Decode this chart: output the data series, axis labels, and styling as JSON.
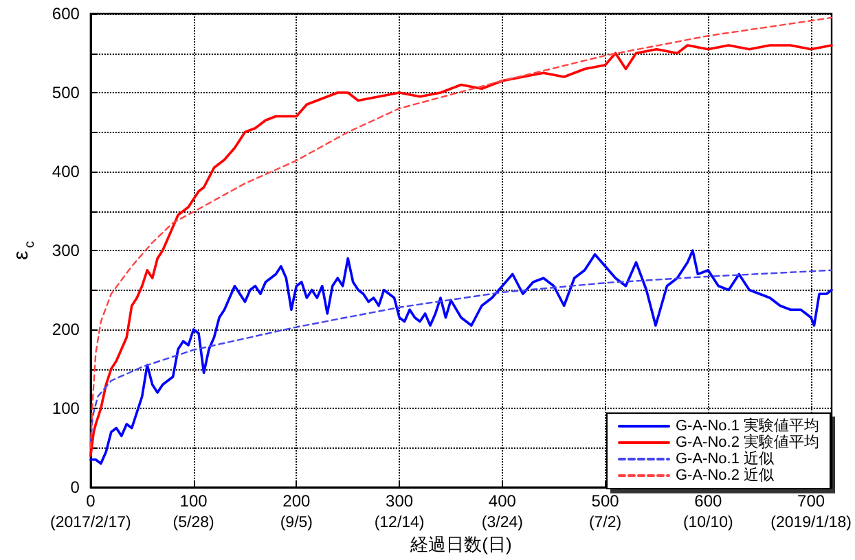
{
  "chart_data": {
    "type": "line",
    "xlabel": "経過日数(日)",
    "ylabel": "ε$_{c}$",
    "xlim": [
      0,
      720
    ],
    "ylim": [
      0,
      600
    ],
    "xticks": [
      0,
      100,
      200,
      300,
      400,
      500,
      600,
      700
    ],
    "x2lim": [
      "2017-02-17",
      "2019-02-07"
    ],
    "x2ticks": [
      {
        "value": "2017-02-17",
        "label": "(2017/2/17)"
      },
      {
        "value": "2017-05-28",
        "label": "(5/28)"
      },
      {
        "value": "2017-09-05",
        "label": "(9/5)"
      },
      {
        "value": "2017-12-14",
        "label": "(12/14)"
      },
      {
        "value": "2018-03-24",
        "label": "(3/24)"
      },
      {
        "value": "2018-07-02",
        "label": "(7/2)"
      },
      {
        "value": "2018-10-10",
        "label": "(10/10)"
      },
      {
        "value": "2019-01-18",
        "label": "(2019/1/18)"
      }
    ],
    "yticks": [
      0,
      {
        "value": 50,
        "label": null
      },
      100,
      {
        "value": 150,
        "label": null
      },
      200,
      {
        "value": 250,
        "label": null
      },
      300,
      {
        "value": 350,
        "label": null
      },
      400,
      {
        "value": 450,
        "label": null
      },
      500,
      {
        "value": 550,
        "label": null
      },
      600
    ],
    "grid": true,
    "legend": "bottom right",
    "marker": "none",
    "series": [
      {
        "name": "G-A-No.1 実験値平均",
        "color": "#0000ff",
        "line_style": "solid",
        "x": [
          0,
          5,
          10,
          15,
          20,
          25,
          30,
          35,
          40,
          45,
          50,
          55,
          60,
          65,
          70,
          75,
          80,
          85,
          90,
          95,
          100,
          105,
          110,
          115,
          120,
          125,
          130,
          135,
          140,
          145,
          150,
          155,
          160,
          165,
          170,
          175,
          180,
          185,
          190,
          195,
          200,
          205,
          210,
          215,
          220,
          225,
          230,
          235,
          240,
          245,
          250,
          255,
          260,
          265,
          270,
          275,
          280,
          285,
          290,
          295,
          300,
          305,
          310,
          315,
          320,
          325,
          330,
          335,
          340,
          345,
          350,
          360,
          370,
          380,
          390,
          400,
          410,
          420,
          430,
          440,
          450,
          460,
          470,
          480,
          490,
          500,
          510,
          520,
          530,
          540,
          549,
          560,
          570,
          580,
          585,
          590,
          600,
          610,
          620,
          630,
          640,
          650,
          660,
          670,
          680,
          690,
          700,
          703,
          708,
          715,
          720
        ],
        "values": [
          35,
          35,
          30,
          45,
          70,
          75,
          65,
          80,
          75,
          95,
          115,
          155,
          130,
          120,
          130,
          135,
          140,
          175,
          185,
          180,
          200,
          195,
          145,
          175,
          190,
          215,
          225,
          240,
          255,
          245,
          235,
          250,
          255,
          245,
          260,
          265,
          270,
          280,
          265,
          225,
          255,
          260,
          240,
          250,
          240,
          255,
          220,
          255,
          265,
          255,
          290,
          260,
          250,
          245,
          235,
          240,
          230,
          250,
          245,
          240,
          215,
          210,
          225,
          215,
          210,
          220,
          205,
          220,
          240,
          215,
          237,
          215,
          205,
          230,
          240,
          255,
          270,
          245,
          260,
          265,
          255,
          230,
          265,
          275,
          295,
          280,
          265,
          255,
          285,
          250,
          205,
          255,
          265,
          285,
          300,
          270,
          275,
          255,
          250,
          270,
          250,
          245,
          240,
          230,
          225,
          225,
          215,
          205,
          245,
          245,
          250
        ]
      },
      {
        "name": "G-A-No.2 実験値平均",
        "color": "#ff0000",
        "line_style": "solid",
        "x": [
          0,
          3,
          5,
          10,
          15,
          20,
          25,
          30,
          35,
          40,
          45,
          50,
          55,
          60,
          65,
          70,
          75,
          80,
          85,
          90,
          95,
          100,
          105,
          110,
          120,
          130,
          140,
          150,
          160,
          170,
          180,
          190,
          200,
          210,
          220,
          230,
          240,
          250,
          260,
          280,
          300,
          320,
          340,
          360,
          380,
          400,
          420,
          440,
          460,
          480,
          500,
          510,
          520,
          530,
          550,
          570,
          580,
          600,
          620,
          640,
          660,
          680,
          700,
          720
        ],
        "values": [
          40,
          70,
          80,
          100,
          130,
          150,
          160,
          175,
          190,
          230,
          240,
          255,
          275,
          265,
          290,
          300,
          315,
          330,
          345,
          350,
          355,
          365,
          375,
          380,
          405,
          415,
          430,
          450,
          455,
          465,
          470,
          470,
          470,
          485,
          490,
          495,
          500,
          500,
          490,
          495,
          500,
          495,
          500,
          510,
          505,
          515,
          520,
          525,
          520,
          530,
          535,
          550,
          530,
          550,
          555,
          550,
          560,
          555,
          560,
          555,
          560,
          560,
          555,
          560
        ]
      },
      {
        "name": "G-A-No.1 近似",
        "color": "#4444ee",
        "line_style": "dashed",
        "x": [
          0,
          2,
          7,
          20,
          51,
          100,
          200,
          300,
          400,
          500,
          600,
          720
        ],
        "values": [
          55,
          90,
          115,
          135,
          153,
          174,
          203,
          228,
          247,
          259,
          267,
          275
        ]
      },
      {
        "name": "G-A-No.2 近似",
        "color": "#ff4444",
        "line_style": "dashed",
        "x": [
          0,
          2,
          5,
          10,
          20,
          40,
          60,
          80,
          100,
          150,
          200,
          250,
          300,
          400,
          500,
          600,
          720
        ],
        "values": [
          50,
          110,
          170,
          210,
          245,
          280,
          310,
          335,
          349,
          385,
          414,
          450,
          480,
          515,
          547,
          572,
          595
        ]
      }
    ]
  }
}
